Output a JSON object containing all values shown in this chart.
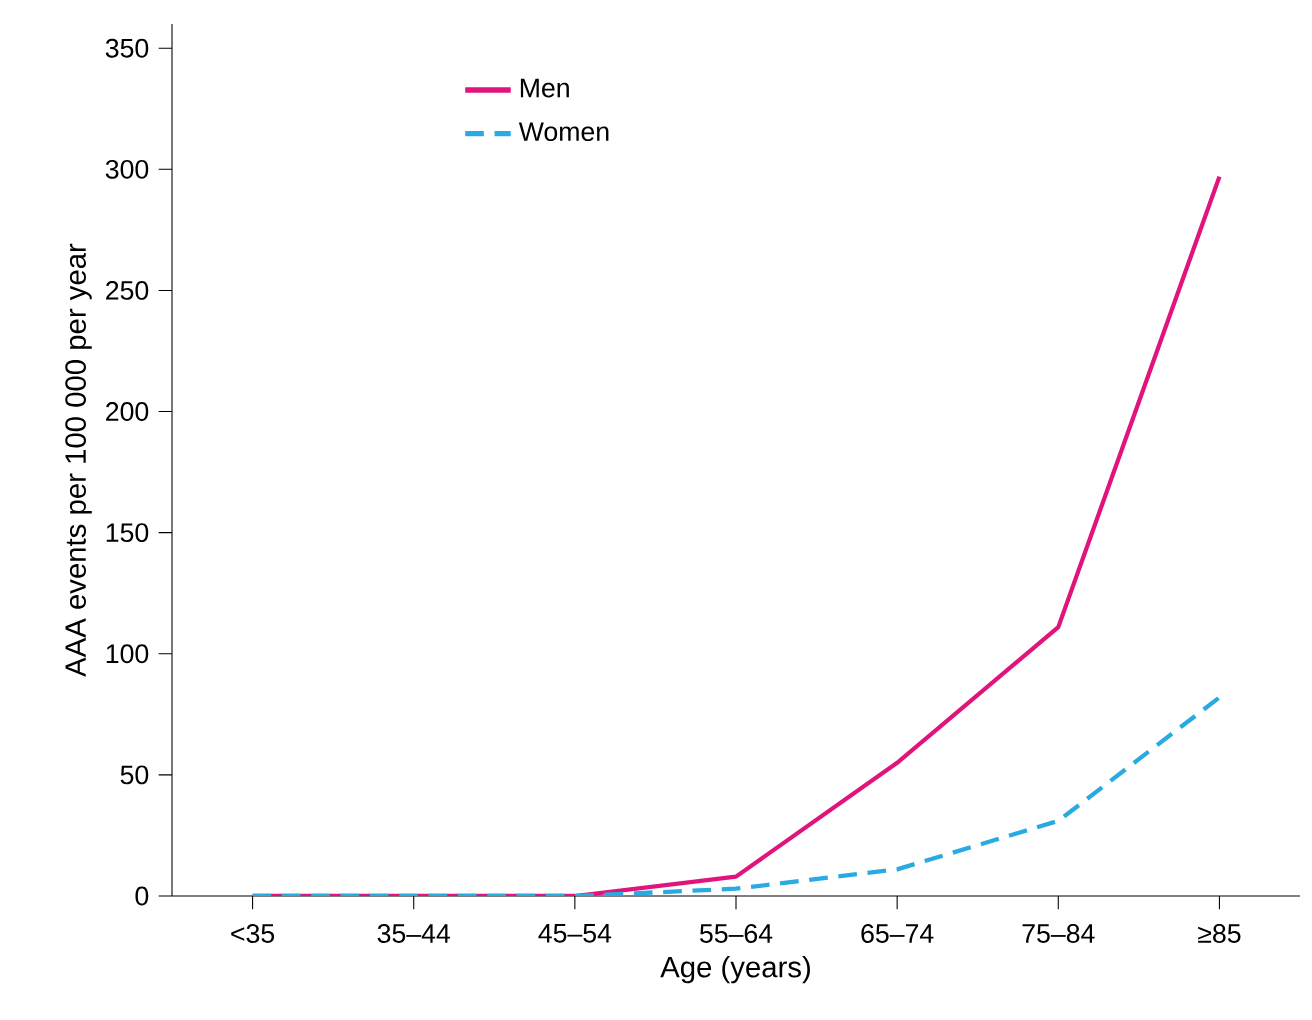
{
  "chart_data": {
    "type": "line",
    "xlabel": "Age (years)",
    "ylabel": "AAA events per 100 000 per year",
    "categories": [
      "<35",
      "35–44",
      "45–54",
      "55–64",
      "65–74",
      "75–84",
      "≥85"
    ],
    "series": [
      {
        "name": "Men",
        "color": "#e0147c",
        "line_style": "solid",
        "values": [
          0,
          0,
          0,
          8,
          55,
          111,
          297
        ]
      },
      {
        "name": "Women",
        "color": "#29abe2",
        "line_style": "dashed",
        "values": [
          0,
          0,
          0,
          3,
          11,
          31,
          82
        ]
      }
    ],
    "ylim": [
      0,
      360
    ],
    "yticks": [
      0,
      50,
      100,
      150,
      200,
      250,
      300,
      350
    ],
    "legend": "top left"
  }
}
